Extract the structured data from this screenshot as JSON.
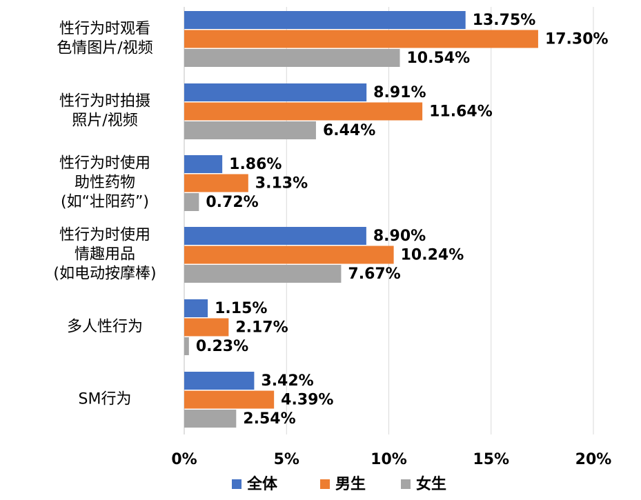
{
  "chart_data": {
    "type": "bar",
    "orientation": "horizontal",
    "categories": [
      [
        "性行为时观看",
        "色情图片/视频"
      ],
      [
        "性行为时拍摄",
        "照片/视频"
      ],
      [
        "性行为时使用",
        "助性药物",
        "(如“壮阳药”)"
      ],
      [
        "性行为时使用",
        "情趣用品",
        "(如电动按摩棒)"
      ],
      [
        "多人性行为"
      ],
      [
        "SM行为"
      ]
    ],
    "series": [
      {
        "name": "全体",
        "color": "#4472C4",
        "values": [
          13.75,
          8.91,
          1.86,
          8.9,
          1.15,
          3.42
        ],
        "labels": [
          "13.75%",
          "8.91%",
          "1.86%",
          "8.90%",
          "1.15%",
          "3.42%"
        ]
      },
      {
        "name": "男生",
        "color": "#ED7D31",
        "values": [
          17.3,
          11.64,
          3.13,
          10.24,
          2.17,
          4.39
        ],
        "labels": [
          "17.30%",
          "11.64%",
          "3.13%",
          "10.24%",
          "2.17%",
          "4.39%"
        ]
      },
      {
        "name": "女生",
        "color": "#A5A5A5",
        "values": [
          10.54,
          6.44,
          0.72,
          7.67,
          0.23,
          2.54
        ],
        "labels": [
          "10.54%",
          "6.44%",
          "0.72%",
          "7.67%",
          "0.23%",
          "2.54%"
        ]
      }
    ],
    "x_ticks": [
      0,
      5,
      10,
      15,
      20
    ],
    "x_tick_labels": [
      "0%",
      "5%",
      "10%",
      "15%",
      "20%"
    ],
    "xlim": [
      0,
      20
    ],
    "grid": true,
    "legend_position": "bottom"
  }
}
